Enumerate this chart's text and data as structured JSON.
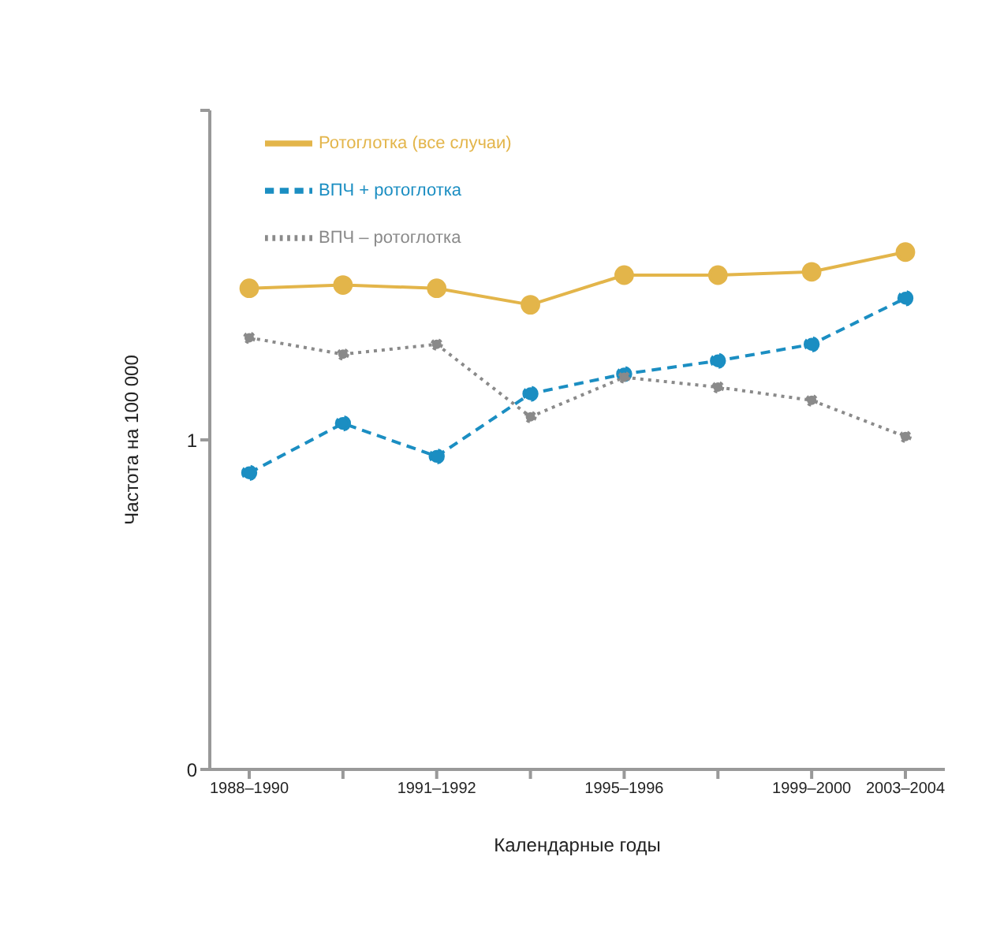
{
  "chart_data": {
    "type": "line",
    "xlabel": "Календарные годы",
    "ylabel": "Частота на 100 000",
    "categories": [
      "1988–1990",
      null,
      "1991–1992",
      null,
      "1995–1996",
      null,
      "1999–2000",
      "2003–2004"
    ],
    "ylim": [
      0,
      2
    ],
    "yticks": [
      0,
      1,
      {
        "value": 2,
        "label": null
      }
    ],
    "grid": false,
    "legend": "top left",
    "marker": "circle",
    "series": [
      {
        "name": "Ротоглотка (все случаи)",
        "color": "#e3b54a",
        "line_style": "solid",
        "values": [
          1.46,
          1.47,
          1.46,
          1.41,
          1.5,
          1.5,
          1.51,
          1.57
        ]
      },
      {
        "name": "ВПЧ + ротоглотка",
        "color": "#1b8ec2",
        "line_style": "dashed",
        "values": [
          0.9,
          1.05,
          0.95,
          1.14,
          1.2,
          1.24,
          1.29,
          1.43
        ]
      },
      {
        "name": "ВПЧ – ротоглотка",
        "color": "#8a8a8a",
        "line_style": "dotted",
        "values": [
          1.31,
          1.26,
          1.29,
          1.07,
          1.19,
          1.16,
          1.12,
          1.01
        ]
      }
    ]
  }
}
